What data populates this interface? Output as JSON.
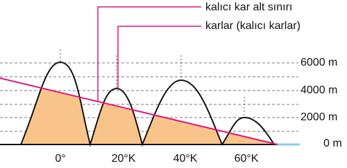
{
  "labels": {
    "snow_line": "kalıcı kar alt sınırı",
    "snow": "karlar (kalıcı karlar)"
  },
  "y_labels": [
    "6000 m",
    "4000 m",
    "2000 m",
    "0 m"
  ],
  "x_labels": [
    "0°",
    "20°K",
    "40°K",
    "60°K"
  ]
}
